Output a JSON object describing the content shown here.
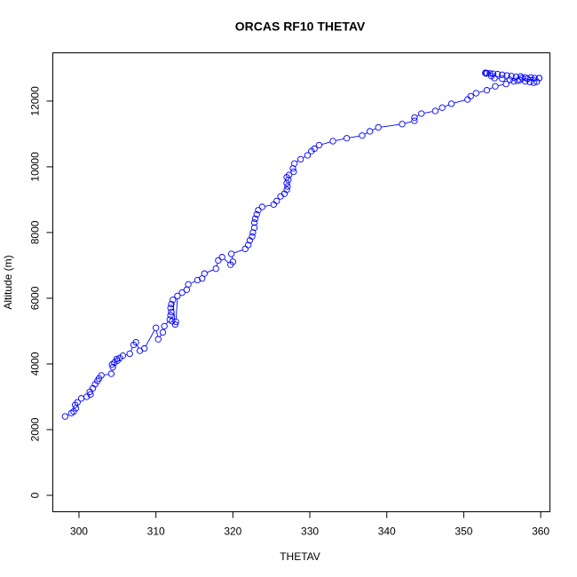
{
  "chart_data": {
    "type": "scatter",
    "title": "ORCAS RF10 THETAV",
    "xlabel": "THETAV",
    "ylabel": "Altitude (m)",
    "xlim": [
      296.6,
      361.2
    ],
    "ylim": [
      -500,
      13470
    ],
    "xticks": [
      300,
      310,
      320,
      330,
      340,
      350,
      360
    ],
    "yticks": [
      0,
      2000,
      4000,
      6000,
      8000,
      10000,
      12000
    ],
    "grid": false,
    "legend": "none",
    "color": "#0000ff",
    "marker": "open-circle",
    "connected": true,
    "series": [
      {
        "x": [
          298.2,
          299.0,
          299.3,
          299.6,
          299.5,
          299.8,
          300.3,
          301.0,
          301.5,
          301.4,
          301.8,
          302.1,
          302.4,
          302.6,
          302.9,
          304.2,
          304.4,
          304.3,
          304.6,
          305.0,
          304.9,
          305.3,
          305.7,
          306.6,
          307.1,
          307.4,
          307.9,
          308.5,
          310.0,
          310.3,
          310.9,
          311.1,
          311.8,
          311.9,
          312.0,
          311.9,
          312.0,
          312.2,
          312.5,
          312.1,
          312.6,
          312.8,
          313.4,
          314.0,
          314.2,
          315.4,
          316.0,
          316.3,
          317.8,
          318.1,
          318.6,
          319.7,
          320.0,
          319.8,
          321.6,
          322.0,
          322.2,
          322.5,
          322.6,
          322.8,
          322.8,
          322.9,
          323.1,
          323.3,
          323.8,
          325.3,
          325.7,
          326.2,
          326.7,
          327.0,
          327.1,
          327.0,
          327.2,
          327.0,
          327.3,
          327.9,
          327.8,
          328.0,
          328.8,
          329.7,
          330.2,
          330.6,
          331.2,
          333.0,
          334.8,
          336.8,
          337.8,
          338.9,
          342.0,
          343.6,
          343.6,
          344.5,
          346.3,
          347.2,
          348.4,
          350.5,
          350.9,
          351.6,
          353.0,
          354.1,
          355.5,
          356.5,
          357.3,
          357.6,
          358.3,
          358.7,
          359.2,
          359.8,
          358.0,
          357.4,
          356.8,
          356.2,
          355.6,
          355.0,
          354.4,
          353.8,
          353.4,
          353.0,
          352.8,
          352.9,
          353.6,
          354.0,
          355.0,
          356.0,
          357.0,
          358.0,
          358.6,
          359.1,
          359.5,
          359.8
        ],
        "y": [
          2400,
          2500,
          2550,
          2650,
          2750,
          2830,
          2950,
          3000,
          3070,
          3150,
          3260,
          3380,
          3480,
          3560,
          3650,
          3700,
          3900,
          3980,
          4040,
          4100,
          4150,
          4180,
          4250,
          4310,
          4580,
          4660,
          4400,
          4470,
          5100,
          4750,
          4960,
          5150,
          5350,
          5480,
          5580,
          5700,
          5820,
          5950,
          5200,
          5300,
          5280,
          6070,
          6170,
          6260,
          6420,
          6550,
          6600,
          6750,
          6900,
          7150,
          7250,
          7020,
          7110,
          7350,
          7500,
          7620,
          7760,
          7880,
          8000,
          8150,
          8300,
          8420,
          8550,
          8680,
          8780,
          8850,
          8960,
          9100,
          9180,
          9300,
          9400,
          9500,
          9600,
          9680,
          9750,
          9850,
          9950,
          10100,
          10230,
          10350,
          10480,
          10550,
          10660,
          10780,
          10870,
          10950,
          11080,
          11200,
          11300,
          11400,
          11500,
          11620,
          11700,
          11800,
          11920,
          12050,
          12150,
          12240,
          12330,
          12450,
          12520,
          12600,
          12640,
          12700,
          12680,
          12720,
          12700,
          12700,
          12720,
          12750,
          12740,
          12760,
          12780,
          12800,
          12820,
          12830,
          12840,
          12850,
          12860,
          12840,
          12760,
          12700,
          12680,
          12650,
          12620,
          12600,
          12580,
          12560,
          12590,
          12700
        ]
      }
    ]
  }
}
